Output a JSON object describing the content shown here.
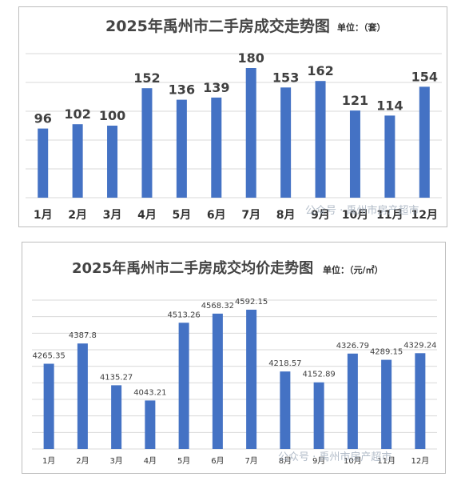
{
  "chart_data": [
    {
      "type": "bar",
      "title": "2025年禹州市二手房成交走势图",
      "unit_label": "单位：（套）",
      "categories": [
        "1月",
        "2月",
        "3月",
        "4月",
        "5月",
        "6月",
        "7月",
        "8月",
        "9月",
        "10月",
        "11月",
        "12月"
      ],
      "values": [
        96,
        102,
        100,
        152,
        136,
        139,
        180,
        153,
        162,
        121,
        114,
        154
      ],
      "data_labels": [
        "96",
        "102",
        "100",
        "152",
        "136",
        "139",
        "180",
        "153",
        "162",
        "121",
        "114",
        "154"
      ],
      "ylim": [
        0,
        200
      ],
      "grid": true,
      "bar_color": "#4472c4",
      "watermark": "公众号 · 禹州市房产超市"
    },
    {
      "type": "bar",
      "title": "2025年禹州市二手房成交均价走势图",
      "unit_label": "单位：（元/㎡）",
      "categories": [
        "1月",
        "2月",
        "3月",
        "4月",
        "5月",
        "6月",
        "7月",
        "8月",
        "9月",
        "10月",
        "11月",
        "12月"
      ],
      "values": [
        4265.35,
        4387.8,
        4135.27,
        4043.21,
        4513.26,
        4568.32,
        4592.15,
        4218.57,
        4152.89,
        4326.79,
        4289.15,
        4329.24
      ],
      "data_labels": [
        "4265.35",
        "4387.8",
        "4135.27",
        "4043.21",
        "4513.26",
        "4568.32",
        "4592.15",
        "4218.57",
        "4152.89",
        "4326.79",
        "4289.15",
        "4329.24"
      ],
      "ylim": [
        3750,
        4650
      ],
      "grid": true,
      "bar_color": "#4472c4",
      "watermark": "公众号 · 禹州市房产超市"
    }
  ]
}
